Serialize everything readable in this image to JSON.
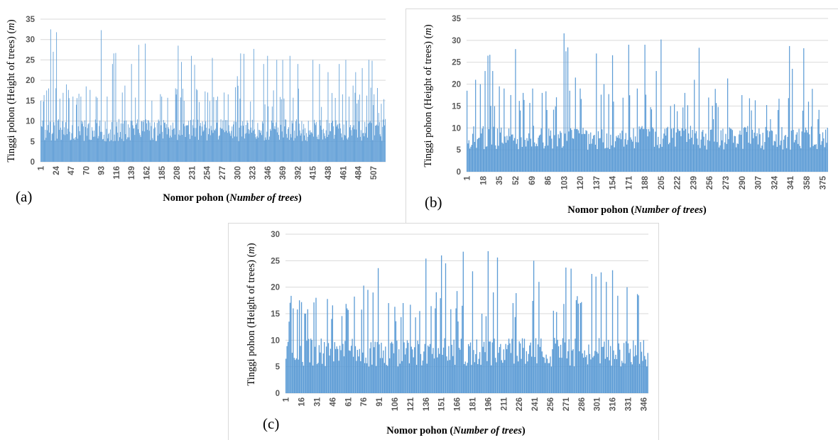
{
  "chart_data": [
    {
      "panel": "(a)",
      "type": "bar",
      "xlabel": "Nomor pohon (Number of trees)",
      "ylabel": "Tinggi pohon (Height of trees) (m)",
      "ylim": [
        0,
        35
      ],
      "yticks": [
        0,
        5,
        10,
        15,
        20,
        25,
        30,
        35
      ],
      "x_tick_labels": [
        "1",
        "24",
        "47",
        "70",
        "93",
        "116",
        "139",
        "162",
        "185",
        "208",
        "231",
        "254",
        "277",
        "300",
        "323",
        "346",
        "369",
        "392",
        "415",
        "438",
        "461",
        "484",
        "507"
      ],
      "n": 525,
      "bar_color": "#5b9bd5",
      "grid": true,
      "peaks": [
        [
          1,
          15
        ],
        [
          5,
          14.8
        ],
        [
          10,
          17.5
        ],
        [
          13,
          18
        ],
        [
          16,
          32.5
        ],
        [
          20,
          27
        ],
        [
          25,
          31.8
        ],
        [
          30,
          15.5
        ],
        [
          40,
          19
        ],
        [
          50,
          16
        ],
        [
          55,
          14
        ],
        [
          62,
          16
        ],
        [
          70,
          18.5
        ],
        [
          85,
          16
        ],
        [
          93,
          32.3
        ],
        [
          110,
          24
        ],
        [
          112,
          26.6
        ],
        [
          115,
          26.7
        ],
        [
          125,
          17
        ],
        [
          139,
          24
        ],
        [
          150,
          28.7
        ],
        [
          160,
          29
        ],
        [
          170,
          15
        ],
        [
          185,
          16
        ],
        [
          210,
          28.5
        ],
        [
          215,
          24.5
        ],
        [
          230,
          26
        ],
        [
          235,
          23.8
        ],
        [
          255,
          17
        ],
        [
          262,
          25.5
        ],
        [
          270,
          16
        ],
        [
          280,
          17
        ],
        [
          300,
          21
        ],
        [
          305,
          26.6
        ],
        [
          310,
          26.5
        ],
        [
          325,
          27.7
        ],
        [
          340,
          24
        ],
        [
          346,
          26
        ],
        [
          360,
          25
        ],
        [
          369,
          25
        ],
        [
          380,
          26
        ],
        [
          392,
          24
        ],
        [
          415,
          25
        ],
        [
          425,
          24
        ],
        [
          438,
          22
        ],
        [
          455,
          24
        ],
        [
          465,
          25
        ],
        [
          470,
          16
        ],
        [
          480,
          22
        ],
        [
          490,
          23
        ],
        [
          500,
          25
        ],
        [
          505,
          24.8
        ],
        [
          515,
          12
        ],
        [
          525,
          10.5
        ]
      ]
    },
    {
      "panel": "(b)",
      "type": "bar",
      "xlabel": "Nomor pohon (Number of trees)",
      "ylabel": "Tinggi pohon (Height of trees) (m)",
      "ylim": [
        0,
        35
      ],
      "yticks": [
        0,
        5,
        10,
        15,
        20,
        25,
        30,
        35
      ],
      "x_tick_labels": [
        "1",
        "18",
        "35",
        "52",
        "69",
        "86",
        "103",
        "120",
        "137",
        "154",
        "171",
        "188",
        "205",
        "222",
        "239",
        "256",
        "273",
        "290",
        "307",
        "324",
        "341",
        "358",
        "375"
      ],
      "n": 380,
      "bar_color": "#5b9bd5",
      "grid": true,
      "peaks": [
        [
          1,
          18.5
        ],
        [
          10,
          21
        ],
        [
          15,
          20
        ],
        [
          20,
          23
        ],
        [
          23,
          26.5
        ],
        [
          25,
          26.7
        ],
        [
          28,
          23
        ],
        [
          35,
          19.5
        ],
        [
          40,
          19
        ],
        [
          52,
          28
        ],
        [
          60,
          18
        ],
        [
          70,
          19
        ],
        [
          80,
          18
        ],
        [
          95,
          17
        ],
        [
          103,
          31.6
        ],
        [
          105,
          27.5
        ],
        [
          107,
          28.4
        ],
        [
          115,
          21.5
        ],
        [
          120,
          19
        ],
        [
          137,
          27
        ],
        [
          145,
          20
        ],
        [
          154,
          26.6
        ],
        [
          171,
          29
        ],
        [
          180,
          19
        ],
        [
          188,
          29
        ],
        [
          200,
          23
        ],
        [
          205,
          30.2
        ],
        [
          215,
          15
        ],
        [
          230,
          18
        ],
        [
          240,
          21
        ],
        [
          245,
          28.3
        ],
        [
          260,
          12
        ],
        [
          275,
          21.3
        ],
        [
          290,
          17.5
        ],
        [
          300,
          14
        ],
        [
          320,
          12
        ],
        [
          340,
          28.7
        ],
        [
          343,
          23.5
        ],
        [
          355,
          28.2
        ],
        [
          360,
          16
        ],
        [
          370,
          12
        ],
        [
          375,
          9
        ]
      ]
    },
    {
      "panel": "(c)",
      "type": "bar",
      "xlabel": "Nomor pohon (Number of trees)",
      "ylabel": "Tinggi pohon (Height of trees) (m)",
      "ylim": [
        0,
        30
      ],
      "yticks": [
        0,
        5,
        10,
        15,
        20,
        25,
        30
      ],
      "x_tick_labels": [
        "1",
        "16",
        "31",
        "46",
        "61",
        "76",
        "91",
        "106",
        "121",
        "136",
        "151",
        "166",
        "181",
        "196",
        "211",
        "226",
        "241",
        "256",
        "271",
        "286",
        "301",
        "316",
        "331",
        "346"
      ],
      "n": 350,
      "bar_color": "#5b9bd5",
      "grid": true,
      "peaks": [
        [
          1,
          6.5
        ],
        [
          4,
          13.5
        ],
        [
          8,
          16
        ],
        [
          12,
          15.8
        ],
        [
          20,
          15
        ],
        [
          30,
          18
        ],
        [
          45,
          14
        ],
        [
          60,
          16
        ],
        [
          76,
          20.3
        ],
        [
          80,
          19.5
        ],
        [
          85,
          19
        ],
        [
          90,
          23.6
        ],
        [
          100,
          17
        ],
        [
          106,
          16.3
        ],
        [
          130,
          15.5
        ],
        [
          136,
          25.4
        ],
        [
          145,
          16
        ],
        [
          151,
          26
        ],
        [
          155,
          24.5
        ],
        [
          165,
          16
        ],
        [
          172,
          26.7
        ],
        [
          181,
          23
        ],
        [
          190,
          15
        ],
        [
          196,
          26.8
        ],
        [
          205,
          25.6
        ],
        [
          220,
          17
        ],
        [
          240,
          25
        ],
        [
          245,
          21
        ],
        [
          271,
          23.7
        ],
        [
          276,
          23.5
        ],
        [
          285,
          17
        ],
        [
          296,
          22.5
        ],
        [
          300,
          22
        ],
        [
          305,
          22.8
        ],
        [
          310,
          21
        ],
        [
          316,
          23.2
        ],
        [
          330,
          20
        ],
        [
          340,
          18.7
        ],
        [
          346,
          10
        ]
      ]
    }
  ]
}
